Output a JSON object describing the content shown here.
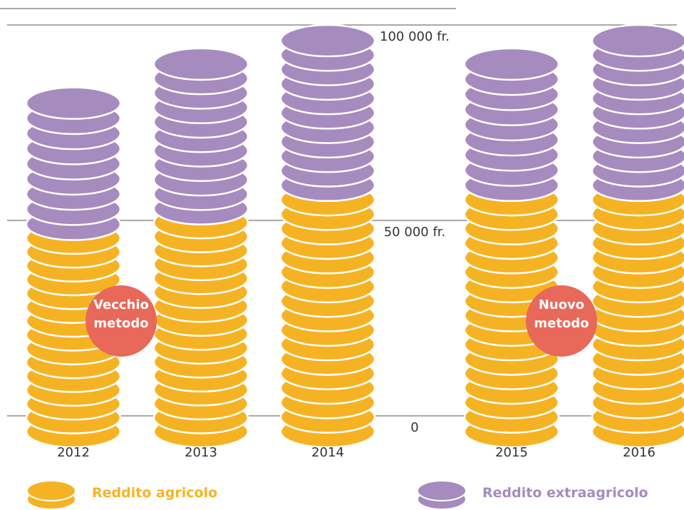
{
  "chart_data": {
    "type": "stacked-coins",
    "categories": [
      "2012",
      "2013",
      "2014",
      "2015",
      "2016"
    ],
    "series": [
      {
        "name": "Reddito agricolo",
        "color": "#f5b324",
        "values": [
          53000,
          57000,
          63000,
          63000,
          63000
        ]
      },
      {
        "name": "Reddito extraagricolo",
        "color": "#a68bbf",
        "values": [
          31000,
          37000,
          37000,
          31000,
          37000
        ]
      }
    ],
    "ylim": [
      0,
      100000
    ],
    "yticks": [
      0,
      {
        "value": 50000,
        "label": "50 000 fr."
      },
      {
        "value": 100000,
        "label": "100 000 fr."
      }
    ],
    "grid": true,
    "annotations": [
      "Vecchio metodo",
      "Nuovo metodo"
    ],
    "annotation_color": "#e8685a"
  }
}
